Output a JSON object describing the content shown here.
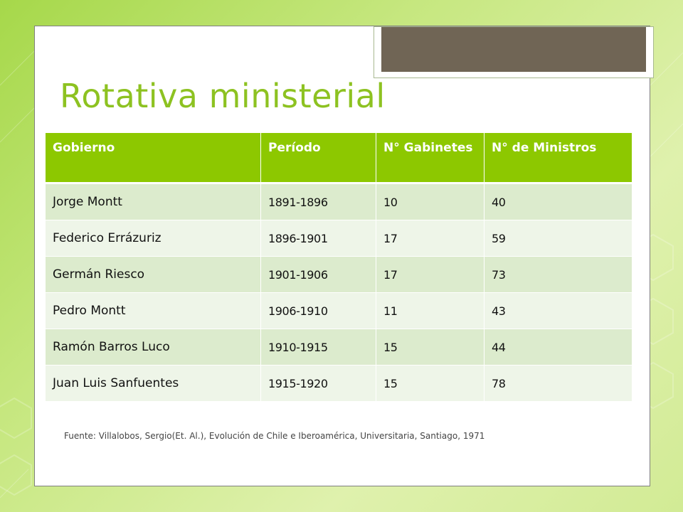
{
  "slide": {
    "title": "Rotativa ministerial",
    "table": {
      "headers": [
        "Gobierno",
        "Período",
        "N° Gabinetes",
        "N° de Ministros"
      ],
      "rows": [
        [
          "Jorge Montt",
          "1891-1896",
          "10",
          "40"
        ],
        [
          "Federico Errázuriz",
          "1896-1901",
          "17",
          "59"
        ],
        [
          "Germán Riesco",
          "1901-1906",
          "17",
          "73"
        ],
        [
          "Pedro Montt",
          "1906-1910",
          "11",
          "43"
        ],
        [
          "Ramón Barros Luco",
          "1910-1915",
          "15",
          "44"
        ],
        [
          "Juan Luis Sanfuentes",
          "1915-1920",
          "15",
          "78"
        ]
      ]
    },
    "source": "Fuente: Villalobos, Sergio(Et. Al.), Evolución de Chile e Iberoamérica, Universitaria, Santiago, 1971"
  },
  "colors": {
    "accent": "#8dc800",
    "title": "#8dc221",
    "row_odd": "#dcebcd",
    "row_even": "#eef5e8",
    "tab": "#706555"
  }
}
